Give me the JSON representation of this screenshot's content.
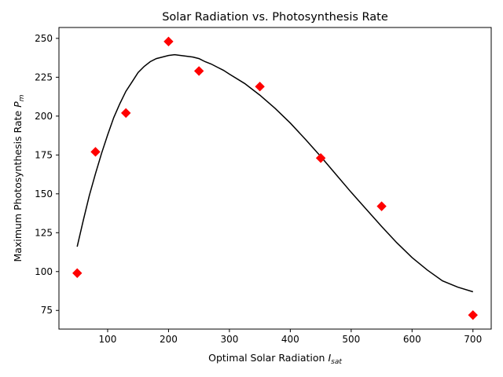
{
  "chart_data": {
    "type": "scatter",
    "title": "Solar Radiation vs. Photosynthesis Rate",
    "xlabel": {
      "main": "Optimal Solar Radiation ",
      "var": "I",
      "sub": "sat"
    },
    "ylabel": {
      "main": "Maximum Photosynthesis Rate ",
      "var": "P",
      "sub": "m"
    },
    "xlim": [
      20,
      730
    ],
    "ylim": [
      63,
      257
    ],
    "xticks": [
      100,
      200,
      300,
      400,
      500,
      600,
      700
    ],
    "yticks": [
      75,
      100,
      125,
      150,
      175,
      200,
      225,
      250
    ],
    "grid": false,
    "series": [
      {
        "kind": "points",
        "marker": "diamond",
        "color": "#ff0000",
        "x": [
          50,
          80,
          130,
          200,
          250,
          350,
          450,
          550,
          700
        ],
        "y": [
          99,
          177,
          202,
          248,
          229,
          219,
          173,
          142,
          72
        ]
      },
      {
        "kind": "line",
        "color": "#000000",
        "x": [
          50,
          60,
          70,
          80,
          90,
          100,
          110,
          120,
          130,
          140,
          150,
          160,
          170,
          180,
          190,
          200,
          210,
          220,
          230,
          240,
          250,
          260,
          270,
          280,
          290,
          300,
          325,
          350,
          375,
          400,
          425,
          450,
          475,
          500,
          525,
          550,
          575,
          600,
          625,
          650,
          675,
          700
        ],
        "y": [
          116,
          133,
          149,
          163,
          176,
          188,
          199,
          208,
          216,
          222,
          228,
          232,
          235,
          237,
          238,
          239,
          239.5,
          239,
          238.5,
          238,
          237,
          235,
          233.5,
          231.5,
          229.5,
          227,
          221,
          213.5,
          205,
          195.5,
          185,
          174,
          162.5,
          151,
          140,
          129,
          118.5,
          109,
          101,
          94,
          90,
          87
        ]
      }
    ]
  }
}
